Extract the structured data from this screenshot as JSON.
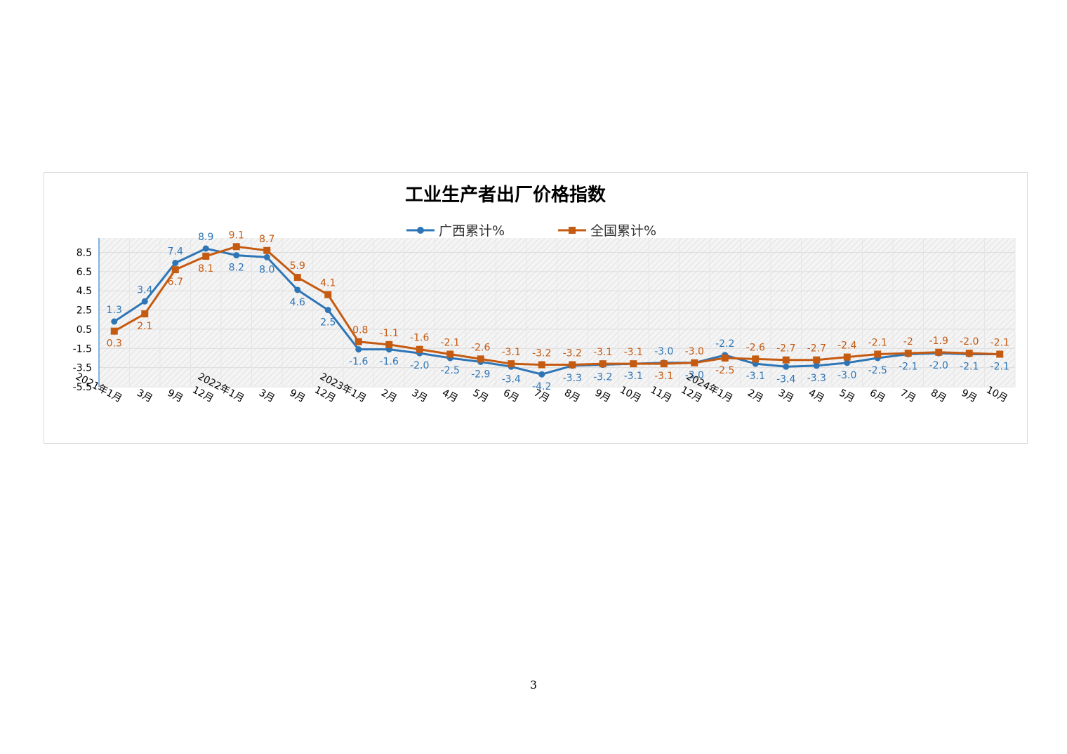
{
  "page": {
    "number": "3"
  },
  "chart_data": {
    "type": "line",
    "title": "工业生产者出厂价格指数",
    "xlabel": "",
    "ylabel": "",
    "yticks": [
      "-5.5",
      "-3.5",
      "-1.5",
      "0.5",
      "2.5",
      "4.5",
      "6.5",
      "8.5"
    ],
    "ylim": [
      -5.5,
      10
    ],
    "grid": true,
    "legend_position": "top",
    "categories": [
      "2021年1月",
      "3月",
      "9月",
      "12月",
      "2022年1月",
      "3月",
      "9月",
      "12月",
      "2023年1月",
      "2月",
      "3月",
      "4月",
      "5月",
      "6月",
      "7月",
      "8月",
      "9月",
      "10月",
      "11月",
      "12月",
      "2024年1月",
      "2月",
      "3月",
      "4月",
      "5月",
      "6月",
      "7月",
      "8月",
      "9月",
      "10月"
    ],
    "series": [
      {
        "name": "广西累计%",
        "color": "#2e75b6",
        "marker": "circle",
        "values": [
          1.3,
          3.4,
          7.4,
          8.9,
          8.2,
          8.0,
          4.6,
          2.5,
          -1.6,
          -1.6,
          -2.0,
          -2.5,
          -2.9,
          -3.4,
          -4.2,
          -3.3,
          -3.2,
          -3.1,
          -3.0,
          -3.0,
          -2.2,
          -3.1,
          -3.4,
          -3.3,
          -3.0,
          -2.5,
          -2.1,
          -2.0,
          -2.1,
          -2.1
        ],
        "labels": [
          "1.3",
          "3.4",
          "7.4",
          "8.9",
          "8.2",
          "8.0",
          "4.6",
          "2.5",
          "-1.6",
          "-1.6",
          "-2.0",
          "-2.5",
          "-2.9",
          "-3.4",
          "-4.2",
          "-3.3",
          "-3.2",
          "-3.1",
          "-3.0",
          "-3.0",
          "-2.2",
          "-3.1",
          "-3.4",
          "-3.3",
          "-3.0",
          "-2.5",
          "-2.1",
          "-2.0",
          "-2.1",
          "-2.1"
        ]
      },
      {
        "name": "全国累计%",
        "color": "#c55a11",
        "marker": "square",
        "values": [
          0.3,
          2.1,
          6.7,
          8.1,
          9.1,
          8.7,
          5.9,
          4.1,
          -0.8,
          -1.1,
          -1.6,
          -2.1,
          -2.6,
          -3.1,
          -3.2,
          -3.2,
          -3.1,
          -3.1,
          -3.1,
          -3.0,
          -2.5,
          -2.6,
          -2.7,
          -2.7,
          -2.4,
          -2.1,
          -2.0,
          -1.9,
          -2.0,
          -2.1
        ],
        "labels": [
          "0.3",
          "2.1",
          "6.7",
          "8.1",
          "9.1",
          "8.7",
          "5.9",
          "4.1",
          "-0.8",
          "-1.1",
          "-1.6",
          "-2.1",
          "-2.6",
          "-3.1",
          "-3.2",
          "-3.2",
          "-3.1",
          "-3.1",
          "-3.1",
          "-3.0",
          "-2.5",
          "-2.6",
          "-2.7",
          "-2.7",
          "-2.4",
          "-2.1",
          "-2",
          "-1.9",
          "-2.0",
          "-2.1"
        ]
      }
    ]
  }
}
